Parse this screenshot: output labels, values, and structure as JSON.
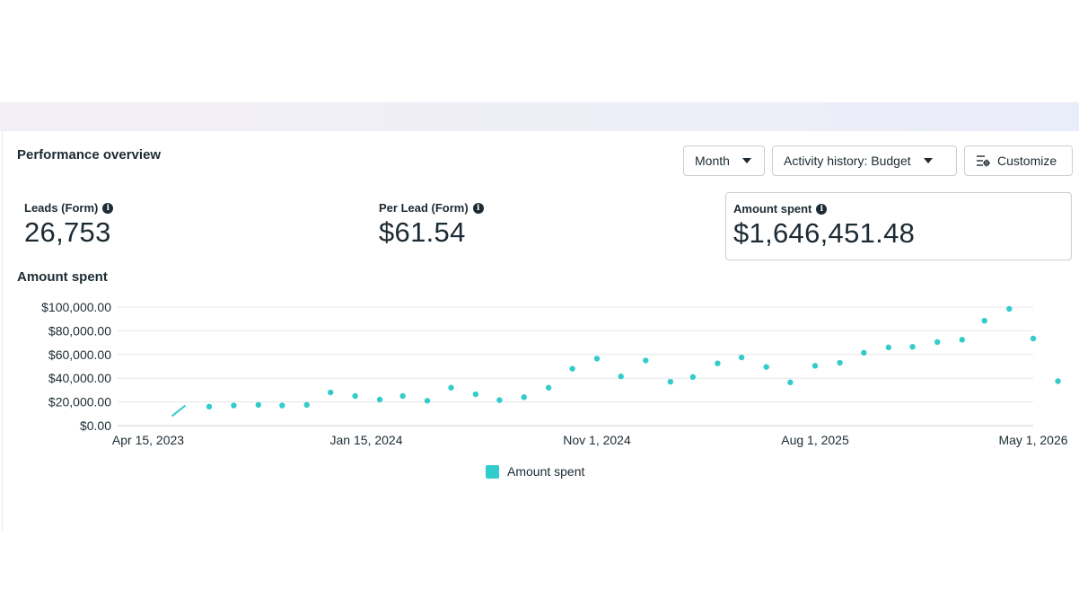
{
  "header": {
    "title": "Performance overview"
  },
  "controls": {
    "month_label": "Month",
    "activity_label": "Activity history: Budget",
    "customize_label": "Customize"
  },
  "metrics": [
    {
      "label": "Leads (Form)",
      "value": "26,753"
    },
    {
      "label": "Per Lead (Form)",
      "value": "$61.54"
    },
    {
      "label": "Amount spent",
      "value": "$1,646,451.48"
    }
  ],
  "colors": {
    "series": "#33cccc",
    "grid": "#e3e6ea",
    "text": "#1c2b33"
  },
  "icons": {
    "info": "info-icon",
    "customize": "sliders-icon",
    "dropdown": "caret-down-icon"
  },
  "chart_data": {
    "type": "scatter",
    "title": "Amount spent",
    "xlabel": "",
    "ylabel": "",
    "x_ticks": [
      "Apr 15, 2023",
      "Jan 15, 2024",
      "Nov 1, 2024",
      "Aug 1, 2025",
      "May 1, 2026"
    ],
    "y_ticks": [
      "$0.00",
      "$20,000.00",
      "$40,000.00",
      "$60,000.00",
      "$80,000.00",
      "$100,000.00"
    ],
    "ylim": [
      0,
      100000
    ],
    "grid": true,
    "legend": "bottom-center",
    "series": [
      {
        "name": "Amount spent",
        "color": "#33cccc",
        "segment": [
          {
            "date": "2023-05-15",
            "value": 8000
          },
          {
            "date": "2023-06-01",
            "value": 17000
          }
        ],
        "points": [
          {
            "date": "2023-07-01",
            "value": 16000
          },
          {
            "date": "2023-08-01",
            "value": 17000
          },
          {
            "date": "2023-09-01",
            "value": 17500
          },
          {
            "date": "2023-10-01",
            "value": 17000
          },
          {
            "date": "2023-11-01",
            "value": 17500
          },
          {
            "date": "2023-12-01",
            "value": 28000
          },
          {
            "date": "2024-01-01",
            "value": 25000
          },
          {
            "date": "2024-02-01",
            "value": 22000
          },
          {
            "date": "2024-03-01",
            "value": 25000
          },
          {
            "date": "2024-04-01",
            "value": 21000
          },
          {
            "date": "2024-05-01",
            "value": 32000
          },
          {
            "date": "2024-06-01",
            "value": 26500
          },
          {
            "date": "2024-07-01",
            "value": 21500
          },
          {
            "date": "2024-08-01",
            "value": 24000
          },
          {
            "date": "2024-09-01",
            "value": 32000
          },
          {
            "date": "2024-10-01",
            "value": 48000
          },
          {
            "date": "2024-11-01",
            "value": 56500
          },
          {
            "date": "2024-12-01",
            "value": 41500
          },
          {
            "date": "2025-01-01",
            "value": 55000
          },
          {
            "date": "2025-02-01",
            "value": 37000
          },
          {
            "date": "2025-03-01",
            "value": 41000
          },
          {
            "date": "2025-04-01",
            "value": 52500
          },
          {
            "date": "2025-05-01",
            "value": 57500
          },
          {
            "date": "2025-06-01",
            "value": 49500
          },
          {
            "date": "2025-07-01",
            "value": 36500
          },
          {
            "date": "2025-08-01",
            "value": 50500
          },
          {
            "date": "2025-09-01",
            "value": 53000
          },
          {
            "date": "2025-10-01",
            "value": 61500
          },
          {
            "date": "2025-11-01",
            "value": 66000
          },
          {
            "date": "2025-12-01",
            "value": 66500
          },
          {
            "date": "2026-01-01",
            "value": 70500
          },
          {
            "date": "2026-02-01",
            "value": 72500
          },
          {
            "date": "2026-03-01",
            "value": 88500
          },
          {
            "date": "2026-04-01",
            "value": 98500
          },
          {
            "date": "2026-05-01",
            "value": 73500
          },
          {
            "date": "2026-06-01",
            "value": 37500
          }
        ]
      }
    ]
  }
}
